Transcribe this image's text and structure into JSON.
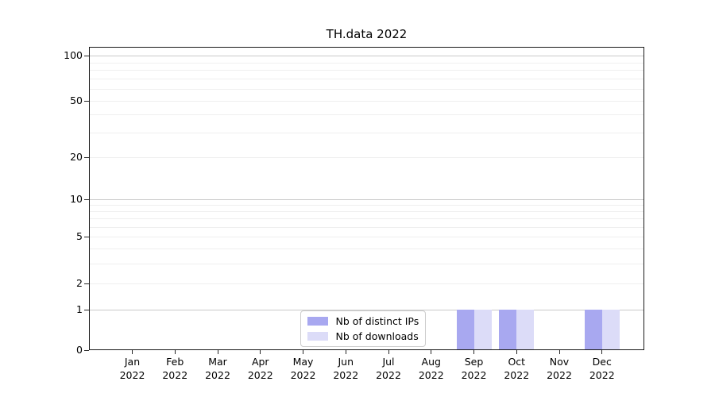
{
  "title": "TH.data 2022",
  "legend": {
    "items": [
      {
        "label": "Nb of distinct IPs",
        "color": "#a8a8f0"
      },
      {
        "label": "Nb of downloads",
        "color": "#dcdcf8"
      }
    ]
  },
  "chart_data": {
    "type": "bar",
    "title": "TH.data 2022",
    "categories": [
      {
        "month": "Jan",
        "year": "2022"
      },
      {
        "month": "Feb",
        "year": "2022"
      },
      {
        "month": "Mar",
        "year": "2022"
      },
      {
        "month": "Apr",
        "year": "2022"
      },
      {
        "month": "May",
        "year": "2022"
      },
      {
        "month": "Jun",
        "year": "2022"
      },
      {
        "month": "Jul",
        "year": "2022"
      },
      {
        "month": "Aug",
        "year": "2022"
      },
      {
        "month": "Sep",
        "year": "2022"
      },
      {
        "month": "Oct",
        "year": "2022"
      },
      {
        "month": "Nov",
        "year": "2022"
      },
      {
        "month": "Dec",
        "year": "2022"
      }
    ],
    "series": [
      {
        "name": "Nb of distinct IPs",
        "color": "#a8a8f0",
        "values": [
          0,
          0,
          0,
          0,
          0,
          0,
          0,
          0,
          1,
          1,
          0,
          1
        ]
      },
      {
        "name": "Nb of downloads",
        "color": "#dcdcf8",
        "values": [
          0,
          0,
          0,
          0,
          0,
          0,
          0,
          0,
          1,
          1,
          0,
          1
        ]
      }
    ],
    "xlabel": "",
    "ylabel": "",
    "yscale": "log1p",
    "ylim": [
      0,
      113
    ],
    "y_ticks": [
      0,
      1,
      2,
      5,
      10,
      20,
      50,
      100
    ],
    "y_major_gridlines": [
      1,
      10,
      100
    ],
    "y_minor_gridlines": [
      2,
      3,
      4,
      5,
      6,
      7,
      8,
      9,
      20,
      30,
      40,
      50,
      60,
      70,
      80,
      90
    ],
    "grid": true,
    "legend_position": "inside lower-center-left"
  },
  "colors": {
    "bar_distinct_ips": "#a8a8f0",
    "bar_downloads": "#dcdcf8",
    "major_grid": "#c9c9c9",
    "minor_grid": "#efefef",
    "axis": "#262626",
    "legend_border": "#cccccc"
  }
}
